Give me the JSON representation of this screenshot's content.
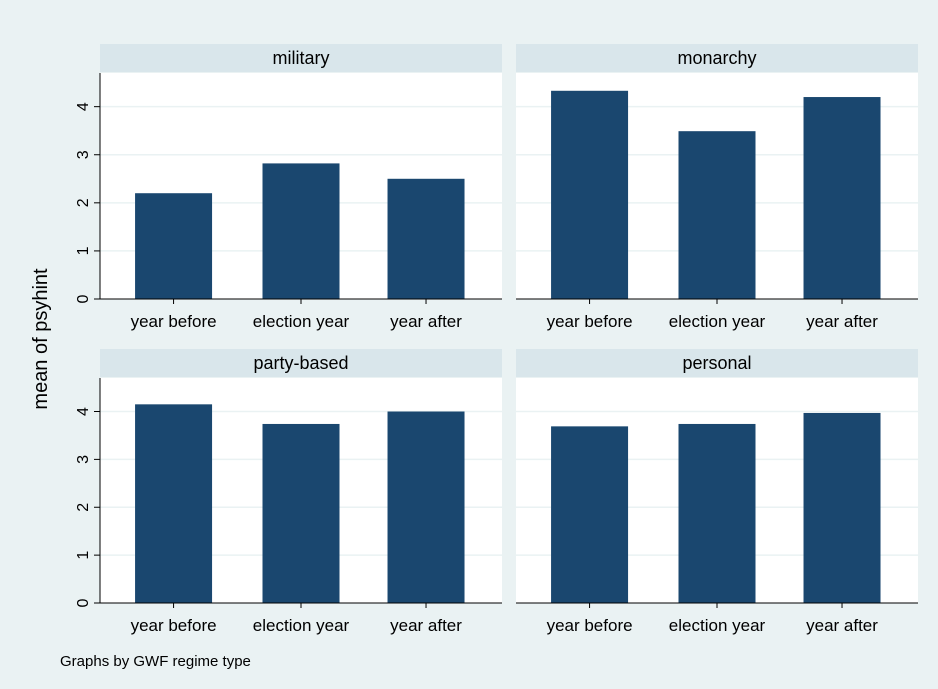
{
  "chart_data": {
    "type": "bar",
    "ylabel": "mean of psyhint",
    "note": "Graphs by GWF regime type",
    "categories": [
      "year before",
      "election year",
      "year after"
    ],
    "yticks": [
      0,
      1,
      2,
      3,
      4
    ],
    "ylim": [
      0,
      4.7
    ],
    "grid": true,
    "bar_color": "#1a476f",
    "panels": [
      {
        "title": "military",
        "values": [
          2.2,
          2.82,
          2.5
        ]
      },
      {
        "title": "monarchy",
        "values": [
          4.33,
          3.49,
          4.2
        ]
      },
      {
        "title": "party-based",
        "values": [
          4.15,
          3.74,
          4.0
        ]
      },
      {
        "title": "personal",
        "values": [
          3.69,
          3.74,
          3.97
        ]
      }
    ]
  }
}
